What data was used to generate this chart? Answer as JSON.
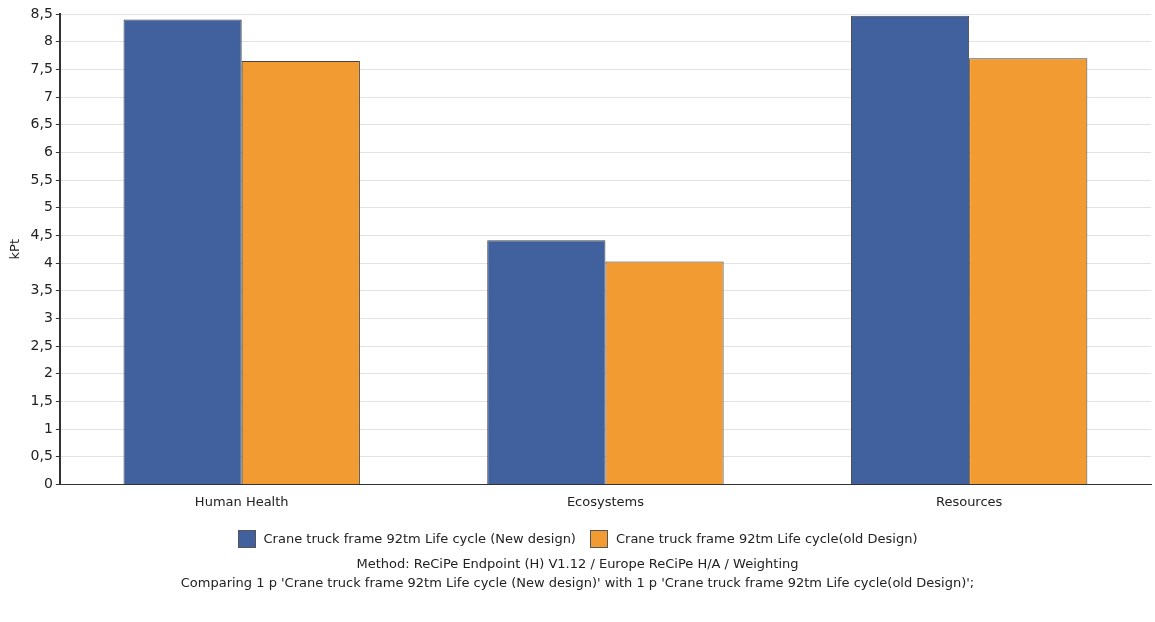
{
  "chart_data": {
    "type": "bar",
    "ylabel": "kPt",
    "categories": [
      "Human Health",
      "Ecosystems",
      "Resources"
    ],
    "series": [
      {
        "name": "Crane truck frame 92tm Life cycle (New design)",
        "color": "#41609e",
        "values": [
          8.4,
          4.41,
          8.47
        ]
      },
      {
        "name": "Crane truck frame 92tm Life cycle(old Design)",
        "color": "#f19b32",
        "values": [
          7.65,
          4.03,
          7.7
        ]
      }
    ],
    "ylim": [
      0,
      8.5
    ],
    "yticks": [
      0,
      {
        "value": 0.5,
        "label": "0,5"
      },
      1,
      {
        "value": 1.5,
        "label": "1,5"
      },
      2,
      {
        "value": 2.5,
        "label": "2,5"
      },
      3,
      {
        "value": 3.5,
        "label": "3,5"
      },
      4,
      {
        "value": 4.5,
        "label": "4,5"
      },
      5,
      {
        "value": 5.5,
        "label": "5,5"
      },
      6,
      {
        "value": 6.5,
        "label": "6,5"
      },
      7,
      {
        "value": 7.5,
        "label": "7,5"
      },
      8,
      {
        "value": 8.5,
        "label": "8,5"
      }
    ],
    "grid": "y",
    "legend": "bottom",
    "annotations": [
      "Method: ReCiPe Endpoint (H) V1.12 / Europe ReCiPe H/A / Weighting",
      "Comparing 1 p 'Crane truck frame 92tm Life cycle (New design)' with 1 p 'Crane truck frame 92tm Life cycle(old Design)';"
    ]
  }
}
